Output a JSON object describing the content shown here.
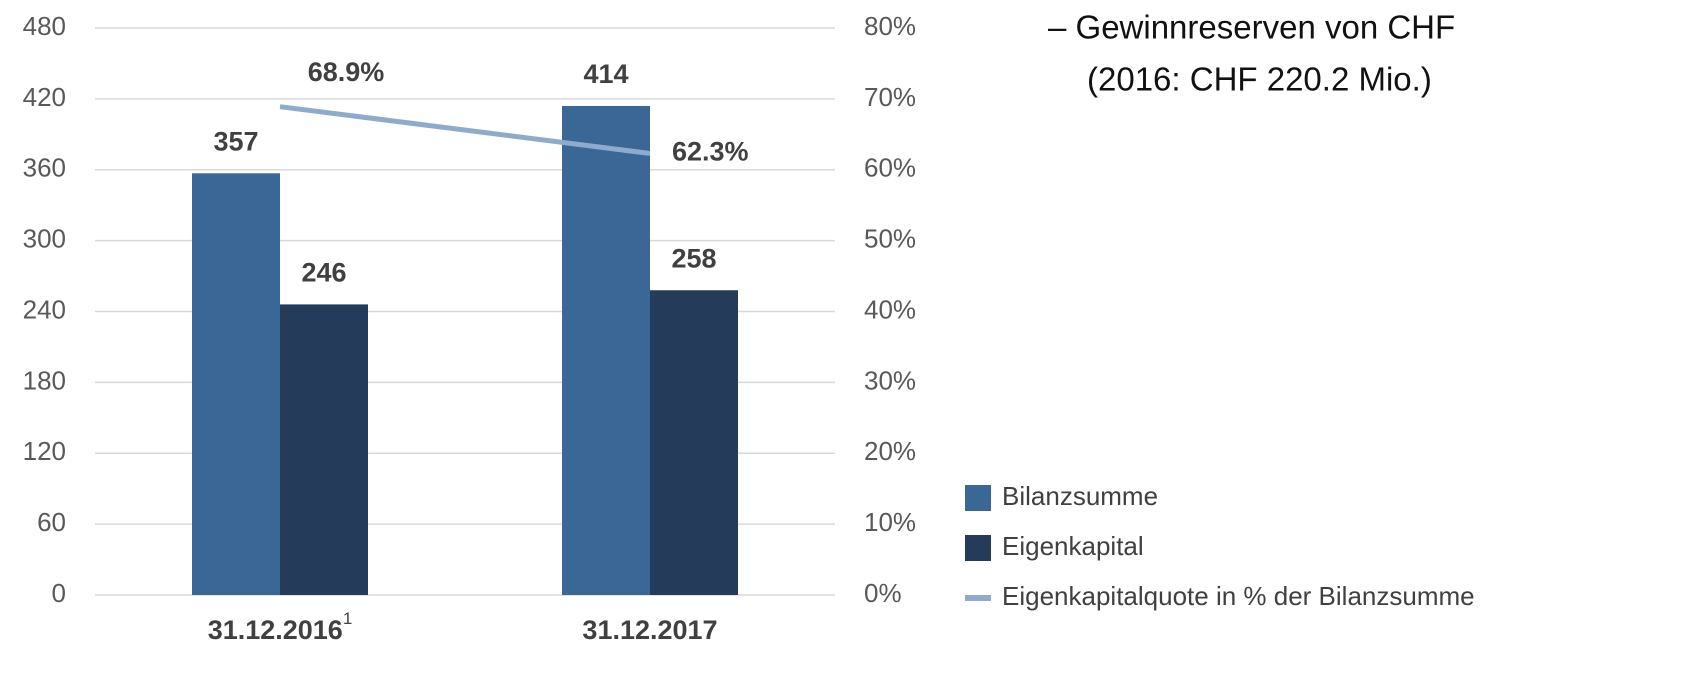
{
  "chart_data": {
    "type": "bar",
    "categories": [
      "31.12.2016",
      "31.12.2017"
    ],
    "category_footnotes": [
      "1",
      null
    ],
    "series": [
      {
        "name": "Bilanzsumme",
        "color": "#3a6796",
        "values": [
          357,
          414
        ]
      },
      {
        "name": "Eigenkapital",
        "color": "#243b59",
        "values": [
          246,
          258
        ]
      },
      {
        "name": "Eigenkapitalquote in % der Bilanzsumme",
        "color": "#8eaacd",
        "type": "line",
        "axis": "y2",
        "values": [
          68.9,
          62.3
        ],
        "value_labels": [
          "68.9%",
          "62.3%"
        ]
      }
    ],
    "ylim": [
      0,
      480
    ],
    "yticks": [
      0,
      60,
      120,
      180,
      240,
      300,
      360,
      420,
      480
    ],
    "y2lim": [
      0,
      80
    ],
    "y2ticks": [
      {
        "value": 0,
        "label": "0%"
      },
      {
        "value": 10,
        "label": "10%"
      },
      {
        "value": 20,
        "label": "20%"
      },
      {
        "value": 30,
        "label": "30%"
      },
      {
        "value": 40,
        "label": "40%"
      },
      {
        "value": 50,
        "label": "50%"
      },
      {
        "value": 60,
        "label": "60%"
      },
      {
        "value": 70,
        "label": "70%"
      },
      {
        "value": 80,
        "label": "80%"
      }
    ],
    "grid": true,
    "legend": "bottom-right",
    "side_text": [
      "– Gewinnreserven von CHF",
      "(2016: CHF 220.2 Mio.)"
    ]
  }
}
